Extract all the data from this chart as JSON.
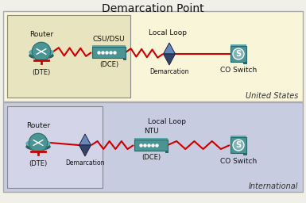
{
  "title": "Demarcation Point",
  "title_fontsize": 10,
  "bg_color": "#f0f0e8",
  "panel1_bg": "#f8f5d8",
  "panel2_bg": "#c8cce0",
  "box1_bg": "#e8e4c0",
  "box2_bg": "#d4d4e8",
  "teal_color": "#4a9494",
  "teal_dark": "#2a6868",
  "teal_light": "#5aacac",
  "line_color": "#cc0000",
  "text_color": "#111111",
  "gray_border": "#999999",
  "panel1_label": "United States",
  "panel2_label": "International",
  "panel1": {
    "router_label": "Router",
    "router_sub": "(DTE)",
    "device_label": "CSU/DSU",
    "device_sub": "(DCE)",
    "demarc_label": "Demarcation",
    "localloop_label": "Local Loop",
    "switch_label": "CO Switch"
  },
  "panel2": {
    "router_label": "Router",
    "router_sub": "(DTE)",
    "device_label": "NTU",
    "device_sub": "(DCE)",
    "demarc_label": "Demarcation",
    "localloop_label": "Local Loop",
    "switch_label": "CO Switch"
  }
}
